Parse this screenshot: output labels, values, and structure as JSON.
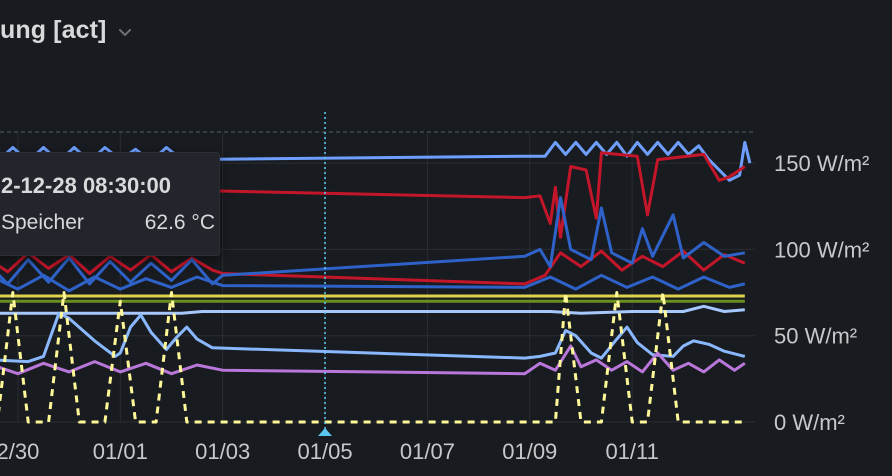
{
  "panel": {
    "title": "ung [act]",
    "icons": {
      "title_menu": "chevron-down-icon"
    }
  },
  "tooltip": {
    "time": "2-12-28 08:30:00",
    "series": "Speicher",
    "value": "62.6 °C"
  },
  "chart_data": {
    "type": "line",
    "xlabel": "",
    "ylabel": "",
    "x_ticks": [
      "2/30",
      "01/01",
      "01/03",
      "01/05",
      "01/07",
      "01/09",
      "01/11"
    ],
    "y_ticks": [
      "0 W/m²",
      "50 W/m²",
      "100 W/m²",
      "150 W/m²"
    ],
    "ylim": [
      0,
      168
    ],
    "grid": true,
    "legend": "none",
    "cursor_x": 100.0,
    "series": [
      {
        "color": "#6e9fff",
        "style": "solid",
        "values": [
          [
            -3,
            152
          ],
          [
            -2.7,
            158
          ],
          [
            -2.4,
            151
          ],
          [
            -2.1,
            159
          ],
          [
            -1.8,
            151
          ],
          [
            -1.5,
            159
          ],
          [
            -1.2,
            151
          ],
          [
            -0.9,
            159
          ],
          [
            -0.6,
            151
          ],
          [
            -0.3,
            159
          ],
          [
            0,
            152
          ],
          [
            0.3,
            158
          ],
          [
            0.6,
            151
          ],
          [
            0.9,
            159
          ],
          [
            1.2,
            152
          ],
          [
            7.9,
            154
          ],
          [
            8.3,
            154
          ],
          [
            8.5,
            162
          ],
          [
            8.7,
            155
          ],
          [
            8.9,
            162
          ],
          [
            9.1,
            155
          ],
          [
            9.3,
            162
          ],
          [
            9.5,
            155
          ],
          [
            9.7,
            162
          ],
          [
            9.9,
            154
          ],
          [
            10.1,
            162
          ],
          [
            10.3,
            155
          ],
          [
            10.5,
            162
          ],
          [
            10.7,
            155
          ],
          [
            10.9,
            162
          ],
          [
            11.1,
            155
          ],
          [
            11.3,
            160
          ],
          [
            11.5,
            152
          ],
          [
            11.9,
            140
          ],
          [
            12.1,
            143
          ],
          [
            12.2,
            162
          ],
          [
            12.3,
            150
          ]
        ]
      },
      {
        "color": "#c4162a",
        "style": "solid",
        "values": [
          [
            -3,
            137
          ],
          [
            7.9,
            130
          ],
          [
            8.2,
            131
          ],
          [
            8.4,
            115
          ],
          [
            8.5,
            136
          ],
          [
            8.6,
            107
          ],
          [
            8.8,
            148
          ],
          [
            9.1,
            146
          ],
          [
            9.3,
            118
          ],
          [
            9.4,
            156
          ],
          [
            10.1,
            154
          ],
          [
            10.3,
            120
          ],
          [
            10.5,
            152
          ],
          [
            11.4,
            155
          ],
          [
            11.7,
            140
          ],
          [
            11.9,
            142
          ],
          [
            12.2,
            148
          ]
        ]
      },
      {
        "color": "#c4162a",
        "style": "solid",
        "values": [
          [
            -3,
            88
          ],
          [
            -2.6,
            95
          ],
          [
            -2.2,
            87
          ],
          [
            -1.8,
            98
          ],
          [
            -1.4,
            89
          ],
          [
            -1,
            97
          ],
          [
            -0.6,
            86
          ],
          [
            -0.2,
            96
          ],
          [
            0.2,
            88
          ],
          [
            0.6,
            97
          ],
          [
            1,
            87
          ],
          [
            1.4,
            95
          ],
          [
            1.8,
            88
          ],
          [
            2,
            86
          ],
          [
            7.9,
            80
          ],
          [
            8.3,
            85
          ],
          [
            8.6,
            98
          ],
          [
            9,
            90
          ],
          [
            9.4,
            99
          ],
          [
            9.8,
            88
          ],
          [
            10.2,
            96
          ],
          [
            10.6,
            90
          ],
          [
            11,
            99
          ],
          [
            11.4,
            88
          ],
          [
            11.8,
            97
          ],
          [
            12.2,
            92
          ]
        ]
      },
      {
        "color": "#2f62c9",
        "style": "solid",
        "values": [
          [
            -3,
            82
          ],
          [
            -2.6,
            92
          ],
          [
            -2.2,
            80
          ],
          [
            -1.8,
            94
          ],
          [
            -1.4,
            81
          ],
          [
            -1,
            95
          ],
          [
            -0.6,
            80
          ],
          [
            -0.2,
            93
          ],
          [
            0.2,
            81
          ],
          [
            0.6,
            92
          ],
          [
            1,
            82
          ],
          [
            1.4,
            94
          ],
          [
            1.8,
            80
          ],
          [
            2,
            85
          ],
          [
            7.9,
            96
          ],
          [
            8.2,
            100
          ],
          [
            8.4,
            90
          ],
          [
            8.6,
            130
          ],
          [
            8.8,
            100
          ],
          [
            9.2,
            94
          ],
          [
            9.4,
            124
          ],
          [
            9.6,
            98
          ],
          [
            10,
            92
          ],
          [
            10.2,
            112
          ],
          [
            10.4,
            96
          ],
          [
            10.8,
            120
          ],
          [
            11,
            95
          ],
          [
            11.4,
            104
          ],
          [
            11.8,
            96
          ],
          [
            12.2,
            98
          ]
        ]
      },
      {
        "color": "#2f62c9",
        "style": "solid",
        "values": [
          [
            -3,
            78
          ],
          [
            -2.5,
            84
          ],
          [
            -2,
            77
          ],
          [
            -1.5,
            85
          ],
          [
            -1,
            76
          ],
          [
            -0.5,
            84
          ],
          [
            0,
            77
          ],
          [
            0.5,
            83
          ],
          [
            1,
            78
          ],
          [
            1.5,
            84
          ],
          [
            2,
            79
          ],
          [
            7.9,
            78
          ],
          [
            8.4,
            84
          ],
          [
            8.9,
            77
          ],
          [
            9.4,
            85
          ],
          [
            9.9,
            78
          ],
          [
            10.4,
            84
          ],
          [
            10.9,
            77
          ],
          [
            11.4,
            84
          ],
          [
            11.9,
            78
          ],
          [
            12.2,
            80
          ]
        ]
      },
      {
        "color": "#e0d24a",
        "style": "solid",
        "values": [
          [
            -3,
            73
          ],
          [
            12.2,
            73
          ]
        ]
      },
      {
        "color": "#6a8f1e",
        "style": "solid",
        "values": [
          [
            -3,
            70
          ],
          [
            12.2,
            70
          ]
        ]
      },
      {
        "color": "#a7c7ff",
        "style": "solid",
        "values": [
          [
            -3,
            63
          ],
          [
            1.2,
            63
          ],
          [
            1.6,
            64
          ],
          [
            7.9,
            64
          ],
          [
            8.4,
            64
          ],
          [
            9,
            63
          ],
          [
            10,
            64
          ],
          [
            11,
            64
          ],
          [
            11.4,
            67
          ],
          [
            11.8,
            64
          ],
          [
            12.2,
            65
          ]
        ]
      },
      {
        "color": "#8ab8ff",
        "style": "solid",
        "values": [
          [
            -3,
            40
          ],
          [
            -2.5,
            36
          ],
          [
            -1.8,
            35
          ],
          [
            -1.5,
            38
          ],
          [
            -1.2,
            63
          ],
          [
            -1,
            60
          ],
          [
            -0.5,
            47
          ],
          [
            -0.1,
            38
          ],
          [
            0,
            40
          ],
          [
            0.2,
            55
          ],
          [
            0.4,
            62
          ],
          [
            0.6,
            52
          ],
          [
            0.9,
            42
          ],
          [
            1.1,
            49
          ],
          [
            1.3,
            55
          ],
          [
            1.5,
            48
          ],
          [
            1.8,
            43
          ],
          [
            7.9,
            37
          ],
          [
            8.2,
            38
          ],
          [
            8.5,
            40
          ],
          [
            8.7,
            53
          ],
          [
            8.9,
            50
          ],
          [
            9.2,
            40
          ],
          [
            9.4,
            37
          ],
          [
            9.7,
            48
          ],
          [
            9.9,
            55
          ],
          [
            10.1,
            46
          ],
          [
            10.4,
            39
          ],
          [
            10.8,
            38
          ],
          [
            11,
            44
          ],
          [
            11.2,
            47
          ],
          [
            11.5,
            45
          ],
          [
            11.8,
            41
          ],
          [
            12.2,
            38
          ]
        ]
      },
      {
        "color": "#b877d9",
        "style": "solid",
        "values": [
          [
            -3,
            30
          ],
          [
            -2.5,
            33
          ],
          [
            -2,
            28
          ],
          [
            -1.5,
            34
          ],
          [
            -1,
            29
          ],
          [
            -0.5,
            35
          ],
          [
            0,
            29
          ],
          [
            0.5,
            34
          ],
          [
            1,
            28
          ],
          [
            1.5,
            33
          ],
          [
            2,
            30
          ],
          [
            7.9,
            28
          ],
          [
            8.2,
            34
          ],
          [
            8.5,
            30
          ],
          [
            8.8,
            44
          ],
          [
            9,
            32
          ],
          [
            9.3,
            36
          ],
          [
            9.6,
            30
          ],
          [
            9.9,
            35
          ],
          [
            10.2,
            29
          ],
          [
            10.5,
            40
          ],
          [
            10.8,
            30
          ],
          [
            11.1,
            34
          ],
          [
            11.4,
            29
          ],
          [
            11.7,
            36
          ],
          [
            12,
            30
          ],
          [
            12.2,
            34
          ]
        ]
      },
      {
        "color": "#fff899",
        "style": "dashed",
        "values": [
          [
            -3,
            0
          ],
          [
            -2.4,
            0
          ],
          [
            -2.1,
            75
          ],
          [
            -1.8,
            0
          ],
          [
            -1.4,
            0
          ],
          [
            -1.1,
            75
          ],
          [
            -0.8,
            0
          ],
          [
            -0.3,
            0
          ],
          [
            0,
            70
          ],
          [
            0.3,
            0
          ],
          [
            0.7,
            0
          ],
          [
            1,
            75
          ],
          [
            1.3,
            0
          ],
          [
            1.6,
            0
          ],
          [
            8.2,
            0
          ],
          [
            8.5,
            0
          ],
          [
            8.7,
            75
          ],
          [
            9,
            0
          ],
          [
            9.4,
            0
          ],
          [
            9.7,
            75
          ],
          [
            10,
            0
          ],
          [
            10.3,
            0
          ],
          [
            10.6,
            75
          ],
          [
            10.9,
            0
          ],
          [
            11.5,
            0
          ],
          [
            11.8,
            0
          ],
          [
            12.2,
            0
          ]
        ]
      }
    ]
  }
}
